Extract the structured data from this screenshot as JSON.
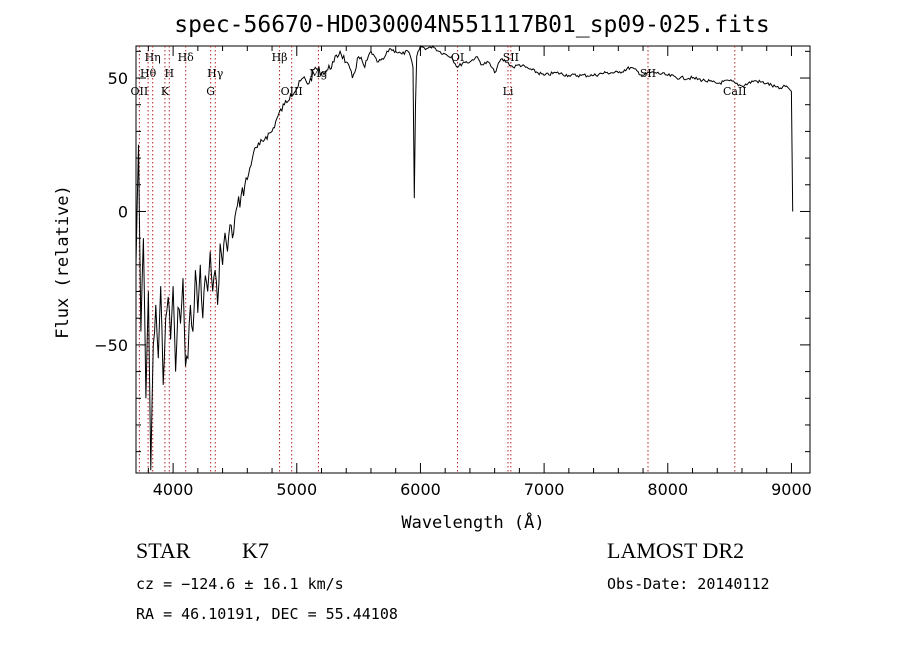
{
  "chart_data": {
    "type": "line",
    "title": "spec-56670-HD030004N551117B01_sp09-025.fits",
    "xlabel": "Wavelength (Å)",
    "ylabel": "Flux (relative)",
    "xlim": [
      3700,
      9150
    ],
    "ylim": [
      -98,
      62
    ],
    "x_ticks": [
      4000,
      5000,
      6000,
      7000,
      8000,
      9000
    ],
    "y_ticks": [
      -50,
      0,
      50
    ],
    "grid": false,
    "series": [
      {
        "x": [
          3700,
          3720,
          3740,
          3760,
          3780,
          3800,
          3820,
          3840,
          3860,
          3880,
          3900,
          3920,
          3940,
          3960,
          3980,
          4000,
          4020,
          4040,
          4060,
          4080,
          4100,
          4120,
          4140,
          4160,
          4180,
          4200,
          4220,
          4240,
          4260,
          4280,
          4300,
          4320,
          4340,
          4360,
          4380,
          4400,
          4420,
          4440,
          4460,
          4480,
          4500,
          4550,
          4600,
          4650,
          4700,
          4750,
          4800,
          4850,
          4900,
          4950,
          5000,
          5050,
          5100,
          5150,
          5200,
          5250,
          5300,
          5350,
          5400,
          5450,
          5500,
          5550,
          5600,
          5650,
          5700,
          5750,
          5800,
          5850,
          5900,
          5920,
          5940,
          5950,
          5960,
          5970,
          6000,
          6050,
          6100,
          6150,
          6200,
          6250,
          6300,
          6350,
          6400,
          6450,
          6500,
          6550,
          6600,
          6650,
          6700,
          6750,
          6800,
          6900,
          7000,
          7100,
          7200,
          7300,
          7400,
          7500,
          7600,
          7700,
          7800,
          7850,
          7900,
          8000,
          8100,
          8200,
          8300,
          8400,
          8500,
          8550,
          8600,
          8700,
          8800,
          8900,
          8960,
          8980,
          9000,
          9010
        ],
        "y": [
          -20,
          25,
          -45,
          -10,
          -70,
          -30,
          -97,
          -50,
          -35,
          -55,
          -28,
          -65,
          -40,
          -32,
          -48,
          -28,
          -60,
          -36,
          -42,
          -25,
          -58,
          -55,
          -35,
          -45,
          -22,
          -38,
          -20,
          -40,
          -24,
          -30,
          -15,
          -30,
          -22,
          -35,
          -12,
          -20,
          -8,
          -15,
          -5,
          -10,
          -2,
          6,
          12,
          22,
          25,
          28,
          30,
          36,
          40,
          44,
          46,
          50,
          48,
          54,
          52,
          53,
          56,
          60,
          56,
          50,
          58,
          54,
          60,
          56,
          57,
          61,
          60,
          59,
          60,
          58,
          54,
          5,
          40,
          58,
          62,
          61,
          62,
          60,
          59,
          58,
          54,
          56,
          56,
          58,
          55,
          56,
          52,
          57,
          56,
          54,
          55,
          53,
          51,
          52,
          51,
          51,
          51,
          52,
          52,
          54,
          51,
          52,
          52,
          51,
          50,
          50,
          49,
          48,
          49,
          48,
          47,
          49,
          48,
          46,
          47,
          46,
          45,
          0
        ],
        "name": ""
      }
    ],
    "lines": [
      {
        "label": "OII",
        "x": 3727,
        "row": 3,
        "marker": true
      },
      {
        "label": "Hθ",
        "x": 3798,
        "row": 2,
        "marker": true
      },
      {
        "label": "Hη",
        "x": 3835,
        "row": 1,
        "marker": true
      },
      {
        "label": "K",
        "x": 3934,
        "row": 3,
        "marker": true
      },
      {
        "label": "H",
        "x": 3969,
        "row": 2,
        "marker": true
      },
      {
        "label": "Hδ",
        "x": 4102,
        "row": 1,
        "marker": true
      },
      {
        "label": "G",
        "x": 4304,
        "row": 3,
        "marker": true
      },
      {
        "label": "Hγ",
        "x": 4341,
        "row": 2,
        "marker": true
      },
      {
        "label": "Hβ",
        "x": 4861,
        "row": 1,
        "marker": true
      },
      {
        "label": "OIII",
        "x": 4959,
        "row": 3,
        "marker": true
      },
      {
        "label": "Mg",
        "x": 5175,
        "row": 2,
        "marker": true
      },
      {
        "label": "OI",
        "x": 6300,
        "row": 1,
        "marker": true
      },
      {
        "label": "Li",
        "x": 6708,
        "row": 3,
        "marker": true
      },
      {
        "label": "SII",
        "x": 6731,
        "row": 1,
        "marker": true
      },
      {
        "label": "SII",
        "x": 7840,
        "row": 2,
        "marker": true
      },
      {
        "label": "CaII",
        "x": 8542,
        "row": 3,
        "marker": true
      }
    ]
  },
  "info": {
    "object_class": "STAR",
    "subclass": "K7",
    "survey": "LAMOST DR2",
    "cz_line": "cz = −124.6 ± 16.1 km/s",
    "obs_date": "Obs-Date: 20140112",
    "coords_line": "RA =  46.10191, DEC =  55.44108"
  }
}
